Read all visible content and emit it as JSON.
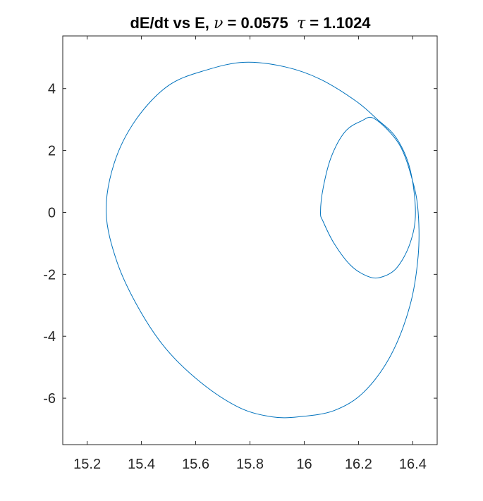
{
  "chart_data": {
    "type": "line",
    "title": {
      "prefix": "dE/dt vs E, ",
      "nu_symbol": "ν",
      "nu_text": " = 0.0575  ",
      "tau_symbol": "τ",
      "tau_text": " = 1.1024"
    },
    "xlabel": "",
    "ylabel": "",
    "xlim": [
      15.11,
      16.49
    ],
    "ylim": [
      -7.5,
      5.7
    ],
    "x_ticks": [
      15.2,
      15.4,
      15.6,
      15.8,
      16,
      16.2,
      16.4
    ],
    "x_tick_labels": [
      "15.2",
      "15.4",
      "15.6",
      "15.8",
      "16",
      "16.2",
      "16.4"
    ],
    "y_ticks": [
      4,
      2,
      0,
      -2,
      -4,
      -6
    ],
    "y_tick_labels": [
      "4",
      "2",
      "0",
      "-2",
      "-4",
      "-6"
    ],
    "grid": false,
    "box": true,
    "series": [
      {
        "color": "#0072bd",
        "x": [
          16.19,
          16.27,
          16.34,
          16.39,
          16.41,
          16.39,
          16.34,
          16.28,
          16.23,
          16.17,
          16.11,
          16.07,
          16.06,
          16.07,
          16.1,
          16.15,
          16.21,
          16.26,
          16.35,
          16.4,
          16.42,
          16.42,
          16.39,
          16.32,
          16.22,
          16.11,
          15.98,
          15.88,
          15.76,
          15.62,
          15.49,
          15.39,
          15.31,
          15.27,
          15.3,
          15.38,
          15.5,
          15.64,
          15.78,
          15.93,
          16.06,
          16.19
        ],
        "y": [
          3.6,
          3.0,
          2.4,
          1.4,
          0.0,
          -1.0,
          -1.8,
          -2.1,
          -2.05,
          -1.7,
          -1.0,
          -0.3,
          0.0,
          0.8,
          1.8,
          2.6,
          2.95,
          3.02,
          2.2,
          1.0,
          0.0,
          -1.4,
          -3.0,
          -4.6,
          -5.8,
          -6.4,
          -6.6,
          -6.6,
          -6.3,
          -5.5,
          -4.4,
          -3.1,
          -1.6,
          0.0,
          1.6,
          3.0,
          4.1,
          4.6,
          4.85,
          4.7,
          4.3,
          3.6
        ]
      }
    ]
  }
}
